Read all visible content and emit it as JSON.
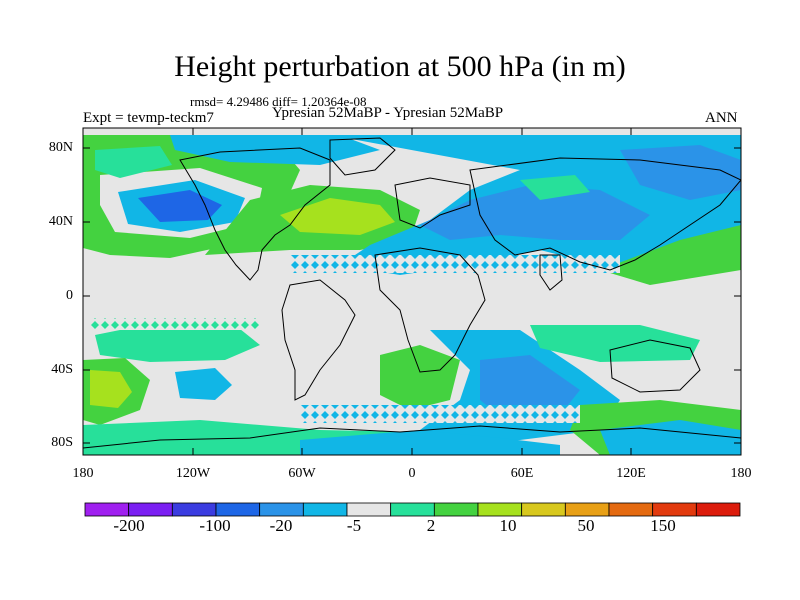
{
  "title": "Height perturbation at 500 hPa (in m)",
  "stats_line": "rmsd= 4.29486 diff= 1.20364e-08",
  "experiment_label": "Expt = tevmp-teckm7",
  "subtitle": "Ypresian  52MaBP - Ypresian  52MaBP",
  "season": "ANN",
  "lat_ticks": [
    "80N",
    "40N",
    "0",
    "40S",
    "80S"
  ],
  "lon_ticks": [
    "180",
    "120W",
    "60W",
    "0",
    "60E",
    "120E",
    "180"
  ],
  "colorbar": {
    "colors": [
      "#a020f0",
      "#7b1ff2",
      "#3b3ce0",
      "#1e66e6",
      "#2b93e8",
      "#11b6e6",
      "#e6e6e6",
      "#27e09a",
      "#44d240",
      "#a6e11e",
      "#d8c81e",
      "#e8a016",
      "#e46a10",
      "#e23a0e",
      "#dc1c0c"
    ],
    "labels": [
      "-200",
      "-100",
      "-20",
      "-5",
      "2",
      "10",
      "50",
      "150"
    ]
  },
  "colors": {
    "background_field": "#e6e6e6",
    "land_outline": "#000000"
  }
}
